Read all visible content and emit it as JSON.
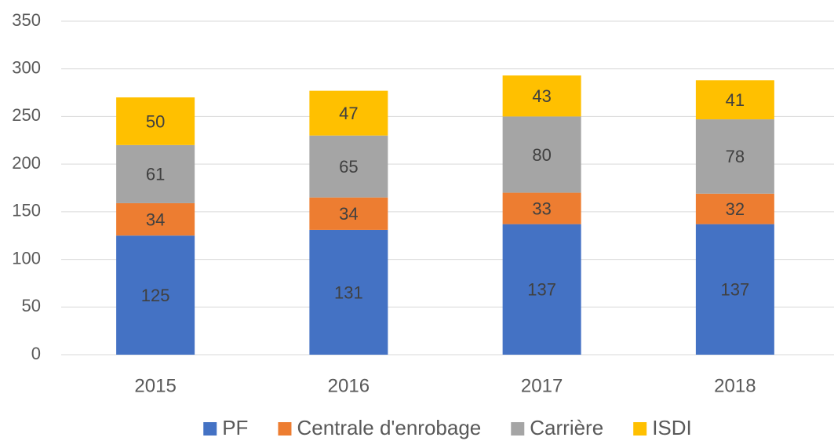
{
  "chart_data": {
    "type": "stacked_bar",
    "categories": [
      "2015",
      "2016",
      "2017",
      "2018"
    ],
    "series": [
      {
        "name": "PF",
        "color": "#4472c4",
        "values": [
          125,
          131,
          137,
          137
        ]
      },
      {
        "name": "Centrale d'enrobage",
        "color": "#ed7d31",
        "values": [
          34,
          34,
          33,
          32
        ]
      },
      {
        "name": "Carrière",
        "color": "#a5a5a5",
        "values": [
          61,
          65,
          80,
          78
        ]
      },
      {
        "name": "ISDI",
        "color": "#ffc000",
        "values": [
          50,
          47,
          43,
          41
        ]
      }
    ],
    "ylim": [
      0,
      350
    ],
    "yticks": [
      0,
      50,
      100,
      150,
      200,
      250,
      300,
      350
    ],
    "grid": true,
    "legend": "bottom"
  }
}
